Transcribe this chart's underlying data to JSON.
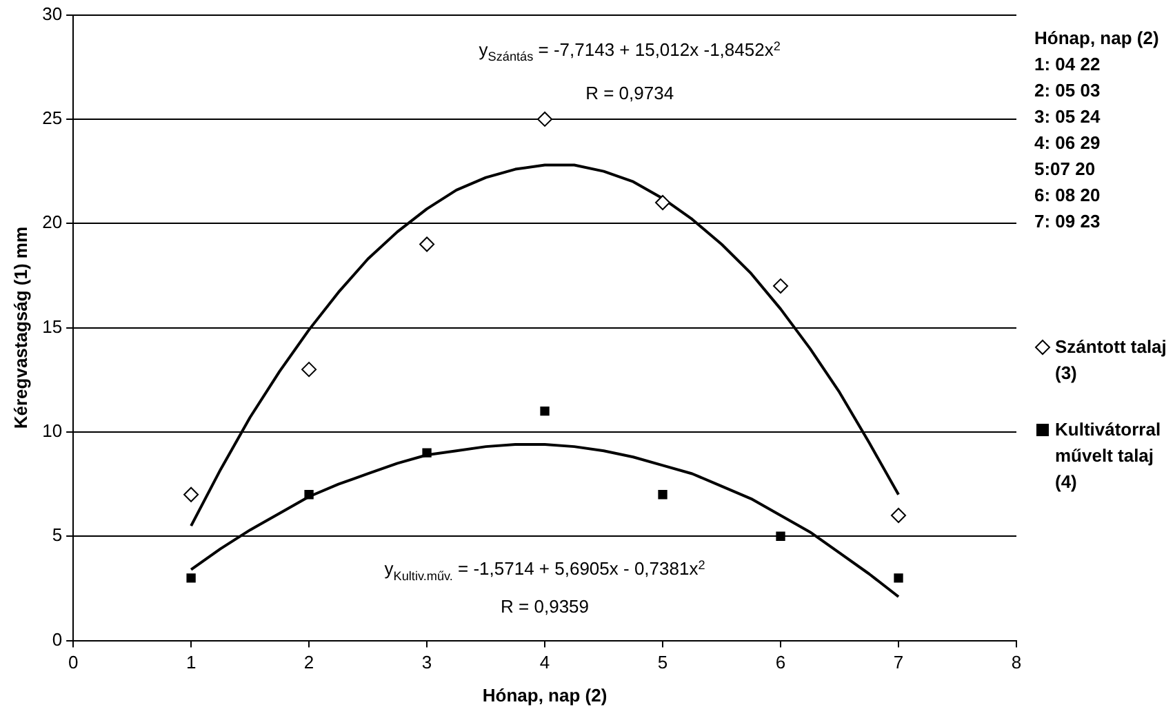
{
  "chart_data": {
    "type": "scatter",
    "xlabel": "Hónap, nap (2)",
    "ylabel": "Kéregvastagság (1) mm",
    "xlim": [
      0,
      8
    ],
    "xticks": [
      0,
      1,
      2,
      3,
      4,
      5,
      6,
      7,
      8
    ],
    "ylim": [
      0,
      30
    ],
    "yticks": [
      0,
      5,
      10,
      15,
      20,
      25,
      30
    ],
    "grid": "y",
    "legend": "right",
    "series": [
      {
        "name": "Szántott talaj (3)",
        "color": "#000000",
        "marker": "diamond",
        "x": [
          1,
          2,
          3,
          4,
          5,
          6,
          7
        ],
        "values": [
          7,
          13,
          19,
          25,
          21,
          17,
          6
        ]
      },
      {
        "name": "Kultivátorral művelt talaj (4)",
        "color": "#000000",
        "marker": "square",
        "x": [
          1,
          2,
          3,
          4,
          5,
          6,
          7
        ],
        "values": [
          3,
          7,
          9,
          11,
          7,
          5,
          3
        ]
      },
      {
        "type": "line",
        "color": "#000000",
        "marker": "none",
        "x": [
          1,
          1.25,
          1.5,
          1.75,
          2,
          2.25,
          2.5,
          2.75,
          3,
          3.25,
          3.5,
          3.75,
          4,
          4.25,
          4.5,
          4.75,
          5,
          5.25,
          5.5,
          5.75,
          6,
          6.25,
          6.5,
          6.75,
          7
        ],
        "values": [
          5.5,
          8.2,
          10.7,
          12.9,
          14.9,
          16.7,
          18.3,
          19.6,
          20.7,
          21.6,
          22.2,
          22.6,
          22.8,
          22.8,
          22.5,
          22.0,
          21.2,
          20.2,
          19.0,
          17.6,
          15.9,
          14.0,
          11.9,
          9.5,
          7.0
        ]
      },
      {
        "type": "line",
        "color": "#000000",
        "marker": "none",
        "x": [
          1,
          1.25,
          1.5,
          1.75,
          2,
          2.25,
          2.5,
          2.75,
          3,
          3.25,
          3.5,
          3.75,
          4,
          4.25,
          4.5,
          4.75,
          5,
          5.25,
          5.5,
          5.75,
          6,
          6.25,
          6.5,
          6.75,
          7
        ],
        "values": [
          3.4,
          4.4,
          5.3,
          6.1,
          6.9,
          7.5,
          8.0,
          8.5,
          8.9,
          9.1,
          9.3,
          9.4,
          9.4,
          9.3,
          9.1,
          8.8,
          8.4,
          8.0,
          7.4,
          6.8,
          6.0,
          5.2,
          4.2,
          3.2,
          2.1
        ]
      }
    ],
    "annotations": [
      "y$_{Szántás}$ = -7,7143 + 15,012x -1,8452x$^{2}$",
      "R = 0,9734",
      "y$_{Kultiv.műv.}$ = -1,5714 + 5,6905x - 0,7381x$^{2}$",
      "R = 0,9359",
      "Hónap, nap (2)",
      "1: 04 22",
      "2: 05 03",
      "3: 05 24",
      "4: 06 29",
      "5:07 20",
      "6: 08 20",
      "7: 09 23"
    ]
  }
}
